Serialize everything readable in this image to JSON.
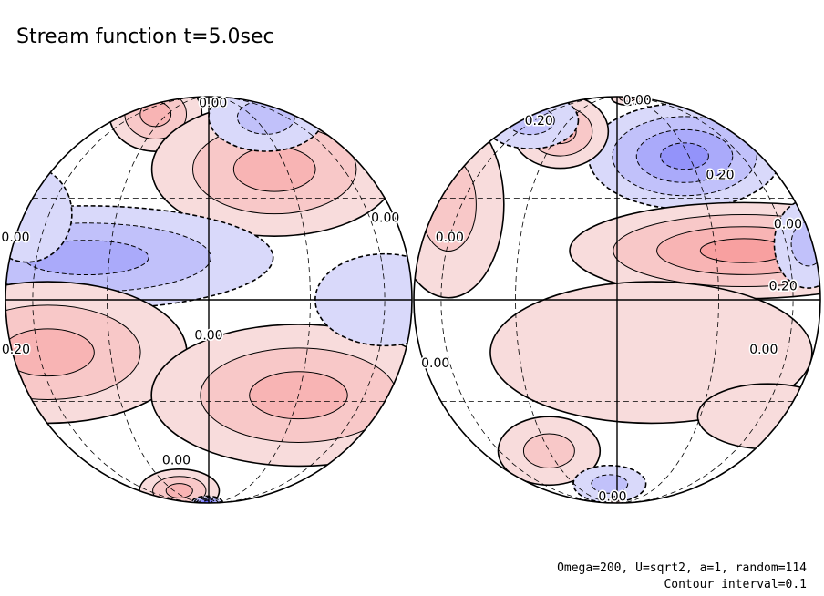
{
  "chart_data": {
    "type": "contour",
    "title": "Stream function t=5.0sec",
    "footer": {
      "params": "Omega=200, U=sqrt2, a=1, random=114",
      "interval": "Contour interval=0.1"
    },
    "contour_interval": 0.1,
    "projection": "orthographic",
    "colors": {
      "positive": "#f3b6b6",
      "negative": "#b8b8f0",
      "line": "#000000"
    },
    "hemispheres": [
      {
        "name": "left",
        "labels": [
          {
            "text": "0.00",
            "lon": 5,
            "lat": 76
          },
          {
            "text": "0.00",
            "lon": 72,
            "lat": 24
          },
          {
            "text": "0.00",
            "lon": -88,
            "lat": 18
          },
          {
            "text": "0.20",
            "lon": -78,
            "lat": -14
          },
          {
            "text": "0.00",
            "lon": 0,
            "lat": -10
          },
          {
            "text": "0.00",
            "lon": -15,
            "lat": -52
          }
        ],
        "blobs": [
          {
            "lon": -40,
            "lat": 66,
            "rx": 34,
            "ry": 24,
            "value": 0.3
          },
          {
            "lon": 25,
            "lat": 40,
            "rx": 52,
            "ry": 24,
            "value": 0.3
          },
          {
            "lon": -38,
            "lat": 12,
            "rx": 70,
            "ry": 14,
            "value": -0.3
          },
          {
            "lon": -55,
            "lat": -15,
            "rx": 45,
            "ry": 20,
            "value": 0.3
          },
          {
            "lon": 30,
            "lat": -28,
            "rx": 55,
            "ry": 22,
            "value": 0.3
          },
          {
            "lon": -25,
            "lat": -70,
            "rx": 35,
            "ry": 15,
            "value": 0.3
          },
          {
            "lon": 40,
            "lat": 64,
            "rx": 40,
            "ry": 20,
            "value": -0.2
          },
          {
            "lon": -80,
            "lat": 25,
            "rx": 14,
            "ry": 14,
            "value": -0.1
          },
          {
            "lon": 60,
            "lat": 0,
            "rx": 20,
            "ry": 12,
            "value": -0.1
          },
          {
            "lon": -5,
            "lat": -85,
            "rx": 60,
            "ry": 8,
            "value": -0.6
          }
        ]
      },
      {
        "name": "right",
        "labels": [
          {
            "text": "0.00",
            "lon": 35,
            "lat": 80
          },
          {
            "text": "0.20",
            "lon": -55,
            "lat": 62
          },
          {
            "text": "0.20",
            "lon": 40,
            "lat": 38
          },
          {
            "text": "0.00",
            "lon": 65,
            "lat": 22
          },
          {
            "text": "0.20",
            "lon": 55,
            "lat": 4
          },
          {
            "text": "0.00",
            "lon": -60,
            "lat": 18
          },
          {
            "text": "0.00",
            "lon": -70,
            "lat": -18
          },
          {
            "text": "0.00",
            "lon": 48,
            "lat": -14
          },
          {
            "text": "0.00",
            "lon": -5,
            "lat": -75
          }
        ],
        "blobs": [
          {
            "lon": 28,
            "lat": 45,
            "rx": 42,
            "ry": 20,
            "value": -0.4
          },
          {
            "lon": -30,
            "lat": 56,
            "rx": 25,
            "ry": 17,
            "value": 0.3
          },
          {
            "lon": 40,
            "lat": 14,
            "rx": 62,
            "ry": 13,
            "value": 0.4
          },
          {
            "lon": -70,
            "lat": 28,
            "rx": 18,
            "ry": 30,
            "value": 0.2
          },
          {
            "lon": -65,
            "lat": 62,
            "rx": 30,
            "ry": 15,
            "value": -0.2
          },
          {
            "lon": 10,
            "lat": -15,
            "rx": 55,
            "ry": 20,
            "value": 0.1
          },
          {
            "lon": -30,
            "lat": -48,
            "rx": 22,
            "ry": 13,
            "value": 0.2
          },
          {
            "lon": 30,
            "lat": 84,
            "rx": 50,
            "ry": 10,
            "value": 0.2
          },
          {
            "lon": -5,
            "lat": -65,
            "rx": 25,
            "ry": 10,
            "value": -0.2
          },
          {
            "lon": 78,
            "lat": 16,
            "rx": 10,
            "ry": 12,
            "value": -0.2
          },
          {
            "lon": -5,
            "lat": -84,
            "rx": 20,
            "ry": 5,
            "value": 0.2
          },
          {
            "lon": 65,
            "lat": -35,
            "rx": 25,
            "ry": 10,
            "value": 0.1
          }
        ]
      }
    ]
  }
}
